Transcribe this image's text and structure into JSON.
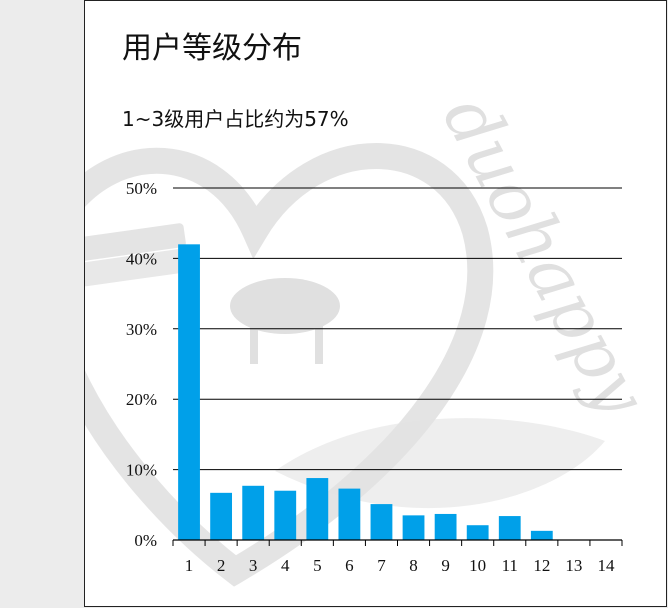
{
  "slide": {
    "title": "用户等级分布",
    "subtitle": "1~3级用户占比约为57%",
    "watermark_text": "duohappy"
  },
  "chart_data": {
    "type": "bar",
    "categories": [
      "1",
      "2",
      "3",
      "4",
      "5",
      "6",
      "7",
      "8",
      "9",
      "10",
      "11",
      "12",
      "13",
      "14"
    ],
    "values": [
      42.0,
      6.7,
      7.7,
      7.0,
      8.8,
      7.3,
      5.1,
      3.5,
      3.7,
      2.1,
      3.4,
      1.3,
      0,
      0
    ],
    "ylim": [
      0,
      50
    ],
    "yticks": [
      "0%",
      "10%",
      "20%",
      "30%",
      "40%",
      "50%"
    ],
    "ytick_values": [
      0,
      10,
      20,
      30,
      40,
      50
    ],
    "grid": true,
    "bar_color": "#00a0e9"
  }
}
